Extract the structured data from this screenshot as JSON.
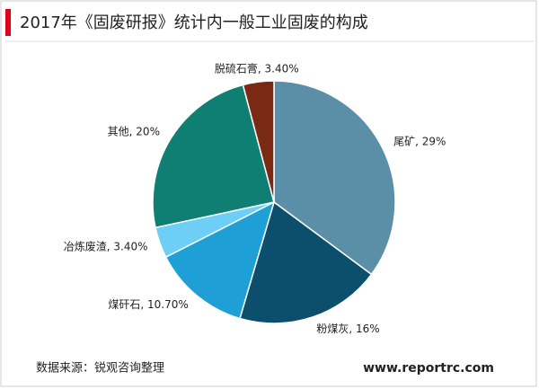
{
  "chart_data": {
    "type": "pie",
    "title": "2017年《固废研报》统计内一般工业固废的构成",
    "values": [
      29,
      16,
      10.7,
      3.4,
      20,
      3.4
    ],
    "value_labels": [
      "尾矿, 29%",
      "粉煤灰, 16%",
      "煤矸石, 10.70%",
      "冶炼废渣, 3.40%",
      "其他, 20%",
      "脱硫石膏, 3.40%"
    ],
    "colors": [
      "#5b8fa8",
      "#0b4f6c",
      "#1e9fd6",
      "#6dcff6",
      "#0f7f73",
      "#7a2a14"
    ],
    "source": "数据来源：锐观咨询整理",
    "website": "www.reportrc.com"
  }
}
